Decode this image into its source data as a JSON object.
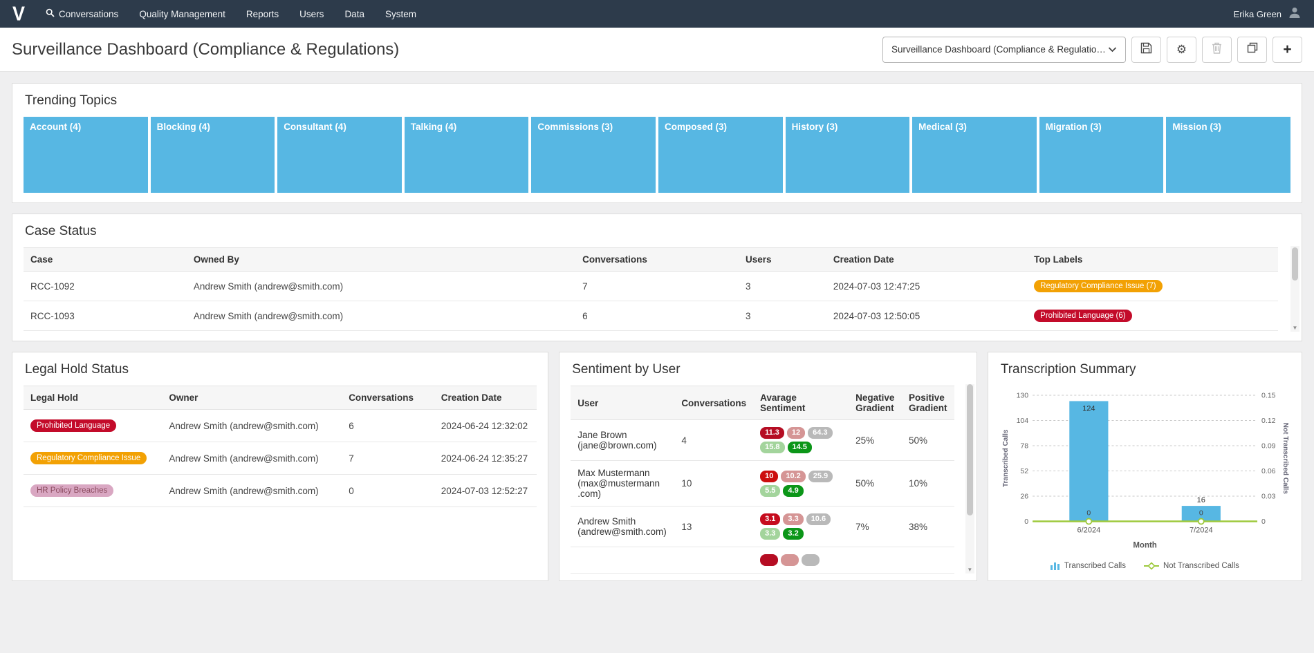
{
  "navbar": {
    "logo_text": "V",
    "menu": [
      "Conversations",
      "Quality Management",
      "Reports",
      "Users",
      "Data",
      "System"
    ],
    "user_name": "Erika Green"
  },
  "header": {
    "page_title": "Surveillance Dashboard (Compliance & Regulations)",
    "dashboard_selector_value": "Surveillance Dashboard (Compliance & Regulations)",
    "toolbar": [
      "save",
      "settings",
      "delete",
      "duplicate",
      "add"
    ]
  },
  "trending_topics": {
    "title": "Trending Topics",
    "tile_color": "#57b7e3",
    "tiles": [
      "Account (4)",
      "Blocking (4)",
      "Consultant (4)",
      "Talking (4)",
      "Commissions (3)",
      "Composed (3)",
      "History (3)",
      "Medical (3)",
      "Migration (3)",
      "Mission (3)"
    ]
  },
  "case_status": {
    "title": "Case Status",
    "columns": [
      "Case",
      "Owned By",
      "Conversations",
      "Users",
      "Creation Date",
      "Top Labels"
    ],
    "rows": [
      {
        "case": "RCC-1092",
        "owned_by": "Andrew Smith (andrew@smith.com)",
        "conversations": "7",
        "users": "3",
        "creation_date": "2024-07-03 12:47:25",
        "top_label": {
          "text": "Regulatory Compliance Issue (7)",
          "bg": "#f2a104",
          "fg": "#ffffff"
        }
      },
      {
        "case": "RCC-1093",
        "owned_by": "Andrew Smith (andrew@smith.com)",
        "conversations": "6",
        "users": "3",
        "creation_date": "2024-07-03 12:50:05",
        "top_label": {
          "text": "Prohibited Language (6)",
          "bg": "#c30b2a",
          "fg": "#ffffff"
        }
      }
    ]
  },
  "legal_hold": {
    "title": "Legal Hold Status",
    "columns": [
      "Legal Hold",
      "Owner",
      "Conversations",
      "Creation Date"
    ],
    "rows": [
      {
        "badge": {
          "text": "Prohibited Language",
          "bg": "#c30b2a",
          "fg": "#ffffff"
        },
        "owner": "Andrew Smith (andrew@smith.com)",
        "conversations": "6",
        "creation_date": "2024-06-24 12:32:02"
      },
      {
        "badge": {
          "text": "Regulatory Compliance Issue",
          "bg": "#f2a104",
          "fg": "#ffffff"
        },
        "owner": "Andrew Smith (andrew@smith.com)",
        "conversations": "7",
        "creation_date": "2024-06-24 12:35:27"
      },
      {
        "badge": {
          "text": "HR Policy Breaches",
          "bg": "#d9a7c2",
          "fg": "#8a4a5e"
        },
        "owner": "Andrew Smith (andrew@smith.com)",
        "conversations": "0",
        "creation_date": "2024-07-03 12:52:27"
      }
    ]
  },
  "sentiment": {
    "title": "Sentiment by User",
    "columns": [
      "User",
      "Conversations",
      "Avarage Sentiment",
      "Negative Gradient",
      "Positive Gradient"
    ],
    "rows": [
      {
        "user": "Jane Brown",
        "email": "(jane@brown.com)",
        "conversations": "4",
        "chips": [
          {
            "v": "11.3",
            "bg": "#b50d23"
          },
          {
            "v": "12",
            "bg": "#d59595"
          },
          {
            "v": "64.3",
            "bg": "#b9b9b9"
          },
          {
            "v": "15.8",
            "bg": "#a3d49c"
          },
          {
            "v": "14.5",
            "bg": "#0b9618"
          }
        ],
        "negative": "25%",
        "positive": "50%"
      },
      {
        "user": "Max Mustermann",
        "email": "(max@mustermann .com)",
        "conversations": "10",
        "chips": [
          {
            "v": "10",
            "bg": "#cc0f0f"
          },
          {
            "v": "10.2",
            "bg": "#d59595"
          },
          {
            "v": "25.9",
            "bg": "#b9b9b9"
          },
          {
            "v": "5.5",
            "bg": "#a3d49c"
          },
          {
            "v": "4.9",
            "bg": "#0b9618"
          }
        ],
        "negative": "50%",
        "positive": "10%"
      },
      {
        "user": "Andrew Smith",
        "email": "(andrew@smith.com)",
        "conversations": "13",
        "chips": [
          {
            "v": "3.1",
            "bg": "#c60c1e"
          },
          {
            "v": "3.3",
            "bg": "#d59595"
          },
          {
            "v": "10.6",
            "bg": "#b9b9b9"
          },
          {
            "v": "3.3",
            "bg": "#a3d49c"
          },
          {
            "v": "3.2",
            "bg": "#0b9618"
          }
        ],
        "negative": "7%",
        "positive": "38%"
      }
    ],
    "partial_row_chips": [
      {
        "v": "",
        "bg": "#b50d23"
      },
      {
        "v": "",
        "bg": "#d59595"
      },
      {
        "v": "",
        "bg": "#b9b9b9"
      }
    ]
  },
  "transcription": {
    "title": "Transcription Summary",
    "chart_data": {
      "type": "bar",
      "categories": [
        "6/2024",
        "7/2024"
      ],
      "series": [
        {
          "name": "Transcribed Calls",
          "type": "bar",
          "axis": "left",
          "color": "#57b7e3",
          "values": [
            124,
            16
          ]
        },
        {
          "name": "Not Transcribed Calls",
          "type": "line",
          "axis": "right",
          "color": "#9dc93c",
          "values": [
            0,
            0
          ]
        }
      ],
      "xlabel": "Month",
      "ylabel_left": "Transcribed Calls",
      "ylabel_right": "Not Transcribed Calls",
      "yticks_left": [
        0,
        26,
        52,
        78,
        104,
        130
      ],
      "yticks_right": [
        0,
        0.03,
        0.06,
        0.09,
        0.12,
        0.15
      ],
      "ylim_left": [
        0,
        130
      ],
      "ylim_right": [
        0,
        0.15
      ],
      "legend": [
        "Transcribed Calls",
        "Not Transcribed Calls"
      ],
      "legend_position": "bottom",
      "grid": "horizontal-dashed"
    }
  }
}
